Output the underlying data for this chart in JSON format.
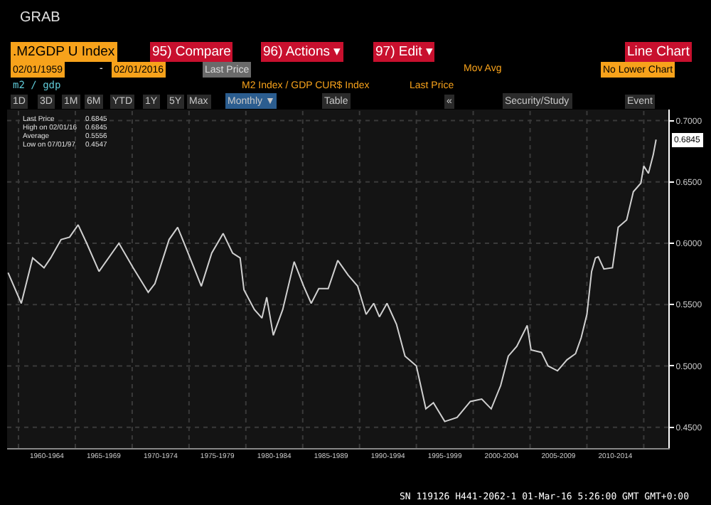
{
  "chart_data": {
    "type": "line",
    "title": "GRAB",
    "ylabel": "m2 / gdp",
    "annotations": [
      ".M2GDP U Index",
      "95) Compare",
      "96) Actions ▾",
      "97) Edit ▾",
      "Line Chart",
      "02/01/1959",
      "-",
      "02/01/2016",
      "Last Price",
      "Mov Avg",
      "No Lower Chart",
      "M2 Index / GDP CUR$ Index",
      "Last Price",
      "1D",
      "3D",
      "1M",
      "6M",
      "YTD",
      "1Y",
      "5Y",
      "Max",
      "Monthly ▼",
      "Table",
      "«",
      "Security/Study",
      "Event",
      "Last Price",
      "0.6845",
      "High on 02/01/16",
      "0.6845",
      "Average",
      "0.5556",
      "Low on 07/01/97",
      "0.4547",
      "SN 119126 H441-2062-1 01-Mar-16 5:26:00 GMT GMT+0:00",
      {
        "text": "0.6845",
        "x": "2016-02",
        "y": 0.6845
      }
    ],
    "x": [
      "1959-02",
      "1960-04",
      "1961-04",
      "1962-04",
      "1962-11",
      "1963-10",
      "1964-07",
      "1965-04",
      "1966-01",
      "1967-02",
      "1968-11",
      "1970-02",
      "1971-06",
      "1972-01",
      "1973-04",
      "1974-01",
      "1974-10",
      "1976-02",
      "1977-01",
      "1978-01",
      "1978-11",
      "1979-07",
      "1979-11",
      "1980-10",
      "1981-06",
      "1981-11",
      "1982-06",
      "1983-04",
      "1984-04",
      "1985-02",
      "1985-10",
      "1986-06",
      "1987-04",
      "1988-02",
      "1989-01",
      "1989-11",
      "1990-08",
      "1991-04",
      "1991-10",
      "1992-06",
      "1993-04",
      "1994-01",
      "1995-01",
      "1995-11",
      "1996-07",
      "1997-07",
      "1998-08",
      "1999-10",
      "2000-10",
      "2001-08",
      "2002-06",
      "2003-02",
      "2003-11",
      "2004-10",
      "2005-02",
      "2006-01",
      "2006-08",
      "2007-06",
      "2008-04",
      "2009-01",
      "2009-07",
      "2010-01",
      "2010-06",
      "2010-10",
      "2011-01",
      "2011-07",
      "2012-04",
      "2012-10",
      "2013-07",
      "2014-02",
      "2014-10",
      "2015-01",
      "2015-06",
      "2015-11",
      "2016-02"
    ],
    "series": [
      {
        "color": "#d0d0d0",
        "values": [
          0.576,
          0.551,
          0.588,
          0.58,
          0.588,
          0.603,
          0.605,
          0.615,
          0.6,
          0.577,
          0.6,
          0.58,
          0.56,
          0.567,
          0.603,
          0.613,
          0.596,
          0.565,
          0.592,
          0.608,
          0.592,
          0.588,
          0.562,
          0.546,
          0.539,
          0.556,
          0.525,
          0.546,
          0.585,
          0.565,
          0.551,
          0.563,
          0.563,
          0.586,
          0.574,
          0.565,
          0.542,
          0.551,
          0.54,
          0.551,
          0.534,
          0.508,
          0.5,
          0.465,
          0.47,
          0.4547,
          0.458,
          0.471,
          0.473,
          0.465,
          0.484,
          0.508,
          0.516,
          0.533,
          0.513,
          0.511,
          0.5,
          0.496,
          0.505,
          0.51,
          0.523,
          0.542,
          0.577,
          0.588,
          0.589,
          0.579,
          0.58,
          0.613,
          0.619,
          0.642,
          0.649,
          0.663,
          0.657,
          0.672,
          0.6845
        ]
      }
    ],
    "xlim": [
      "1959-01",
      "2017-03"
    ],
    "ylim": [
      0.433,
      0.709
    ],
    "xticks": [
      {
        "value": "1960-01",
        "label": null
      },
      {
        "value": "1962-07",
        "label": "1960-1964"
      },
      {
        "value": "1965-01",
        "label": null
      },
      {
        "value": "1967-07",
        "label": "1965-1969"
      },
      {
        "value": "1970-01",
        "label": null
      },
      {
        "value": "1972-07",
        "label": "1970-1974"
      },
      {
        "value": "1975-01",
        "label": null
      },
      {
        "value": "1977-07",
        "label": "1975-1979"
      },
      {
        "value": "1980-01",
        "label": null
      },
      {
        "value": "1982-07",
        "label": "1980-1984"
      },
      {
        "value": "1985-01",
        "label": null
      },
      {
        "value": "1987-07",
        "label": "1985-1989"
      },
      {
        "value": "1990-01",
        "label": null
      },
      {
        "value": "1992-07",
        "label": "1990-1994"
      },
      {
        "value": "1995-01",
        "label": null
      },
      {
        "value": "1997-07",
        "label": "1995-1999"
      },
      {
        "value": "2000-01",
        "label": null
      },
      {
        "value": "2002-07",
        "label": "2000-2004"
      },
      {
        "value": "2005-01",
        "label": null
      },
      {
        "value": "2007-07",
        "label": "2005-2009"
      },
      {
        "value": "2010-01",
        "label": null
      },
      {
        "value": "2012-07",
        "label": "2010-2014"
      },
      {
        "value": "2015-01",
        "label": null
      }
    ],
    "yticks": [
      {
        "value": 0.45,
        "label": "0.4500"
      },
      {
        "value": 0.5,
        "label": "0.5000"
      },
      {
        "value": 0.55,
        "label": "0.5500"
      },
      {
        "value": 0.6,
        "label": "0.6000"
      },
      {
        "value": 0.65,
        "label": "0.6500"
      },
      {
        "value": 0.7,
        "label": "0.7000"
      }
    ],
    "grid": true,
    "marker": "none",
    "line_style": "solid"
  }
}
